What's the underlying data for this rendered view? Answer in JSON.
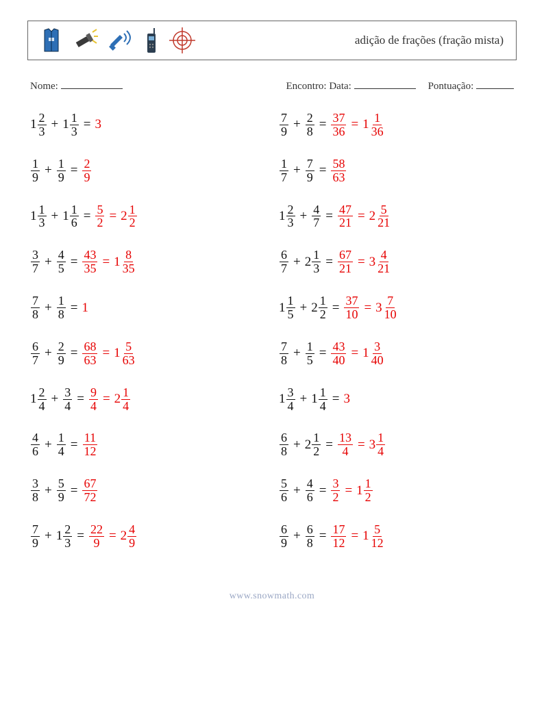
{
  "title": "adição de frações (fração mista)",
  "labels": {
    "name": "Nome:",
    "encounter": "Encontro: Data:",
    "score": "Pontuação:"
  },
  "footer": "www.snowmath.com",
  "colors": {
    "answer": "#e60000",
    "text": "#111111",
    "iconBlue": "#2e6fb5",
    "iconDark": "#2c3e50",
    "iconGreen": "#1c7a3f",
    "iconRed": "#c0392b"
  },
  "problems": [
    {
      "a": {
        "w": "1",
        "n": "2",
        "d": "3"
      },
      "b": {
        "w": "1",
        "n": "1",
        "d": "3"
      },
      "steps": [
        {
          "int": "3"
        }
      ]
    },
    {
      "a": {
        "n": "7",
        "d": "9"
      },
      "b": {
        "n": "2",
        "d": "8"
      },
      "steps": [
        {
          "n": "37",
          "d": "36"
        },
        {
          "w": "1",
          "n": "1",
          "d": "36"
        }
      ]
    },
    {
      "a": {
        "n": "1",
        "d": "9"
      },
      "b": {
        "n": "1",
        "d": "9"
      },
      "steps": [
        {
          "n": "2",
          "d": "9"
        }
      ]
    },
    {
      "a": {
        "n": "1",
        "d": "7"
      },
      "b": {
        "n": "7",
        "d": "9"
      },
      "steps": [
        {
          "n": "58",
          "d": "63"
        }
      ]
    },
    {
      "a": {
        "w": "1",
        "n": "1",
        "d": "3"
      },
      "b": {
        "w": "1",
        "n": "1",
        "d": "6"
      },
      "steps": [
        {
          "n": "5",
          "d": "2"
        },
        {
          "w": "2",
          "n": "1",
          "d": "2"
        }
      ]
    },
    {
      "a": {
        "w": "1",
        "n": "2",
        "d": "3"
      },
      "b": {
        "n": "4",
        "d": "7"
      },
      "steps": [
        {
          "n": "47",
          "d": "21"
        },
        {
          "w": "2",
          "n": "5",
          "d": "21"
        }
      ]
    },
    {
      "a": {
        "n": "3",
        "d": "7"
      },
      "b": {
        "n": "4",
        "d": "5"
      },
      "steps": [
        {
          "n": "43",
          "d": "35"
        },
        {
          "w": "1",
          "n": "8",
          "d": "35"
        }
      ]
    },
    {
      "a": {
        "n": "6",
        "d": "7"
      },
      "b": {
        "w": "2",
        "n": "1",
        "d": "3"
      },
      "steps": [
        {
          "n": "67",
          "d": "21"
        },
        {
          "w": "3",
          "n": "4",
          "d": "21"
        }
      ]
    },
    {
      "a": {
        "n": "7",
        "d": "8"
      },
      "b": {
        "n": "1",
        "d": "8"
      },
      "steps": [
        {
          "int": "1"
        }
      ]
    },
    {
      "a": {
        "w": "1",
        "n": "1",
        "d": "5"
      },
      "b": {
        "w": "2",
        "n": "1",
        "d": "2"
      },
      "steps": [
        {
          "n": "37",
          "d": "10"
        },
        {
          "w": "3",
          "n": "7",
          "d": "10"
        }
      ]
    },
    {
      "a": {
        "n": "6",
        "d": "7"
      },
      "b": {
        "n": "2",
        "d": "9"
      },
      "steps": [
        {
          "n": "68",
          "d": "63"
        },
        {
          "w": "1",
          "n": "5",
          "d": "63"
        }
      ]
    },
    {
      "a": {
        "n": "7",
        "d": "8"
      },
      "b": {
        "n": "1",
        "d": "5"
      },
      "steps": [
        {
          "n": "43",
          "d": "40"
        },
        {
          "w": "1",
          "n": "3",
          "d": "40"
        }
      ]
    },
    {
      "a": {
        "w": "1",
        "n": "2",
        "d": "4"
      },
      "b": {
        "n": "3",
        "d": "4"
      },
      "steps": [
        {
          "n": "9",
          "d": "4"
        },
        {
          "w": "2",
          "n": "1",
          "d": "4"
        }
      ]
    },
    {
      "a": {
        "w": "1",
        "n": "3",
        "d": "4"
      },
      "b": {
        "w": "1",
        "n": "1",
        "d": "4"
      },
      "steps": [
        {
          "int": "3"
        }
      ]
    },
    {
      "a": {
        "n": "4",
        "d": "6"
      },
      "b": {
        "n": "1",
        "d": "4"
      },
      "steps": [
        {
          "n": "11",
          "d": "12"
        }
      ]
    },
    {
      "a": {
        "n": "6",
        "d": "8"
      },
      "b": {
        "w": "2",
        "n": "1",
        "d": "2"
      },
      "steps": [
        {
          "n": "13",
          "d": "4"
        },
        {
          "w": "3",
          "n": "1",
          "d": "4"
        }
      ]
    },
    {
      "a": {
        "n": "3",
        "d": "8"
      },
      "b": {
        "n": "5",
        "d": "9"
      },
      "steps": [
        {
          "n": "67",
          "d": "72"
        }
      ]
    },
    {
      "a": {
        "n": "5",
        "d": "6"
      },
      "b": {
        "n": "4",
        "d": "6"
      },
      "steps": [
        {
          "n": "3",
          "d": "2"
        },
        {
          "w": "1",
          "n": "1",
          "d": "2"
        }
      ]
    },
    {
      "a": {
        "n": "7",
        "d": "9"
      },
      "b": {
        "w": "1",
        "n": "2",
        "d": "3"
      },
      "steps": [
        {
          "n": "22",
          "d": "9"
        },
        {
          "w": "2",
          "n": "4",
          "d": "9"
        }
      ]
    },
    {
      "a": {
        "n": "6",
        "d": "9"
      },
      "b": {
        "n": "6",
        "d": "8"
      },
      "steps": [
        {
          "n": "17",
          "d": "12"
        },
        {
          "w": "1",
          "n": "5",
          "d": "12"
        }
      ]
    }
  ]
}
